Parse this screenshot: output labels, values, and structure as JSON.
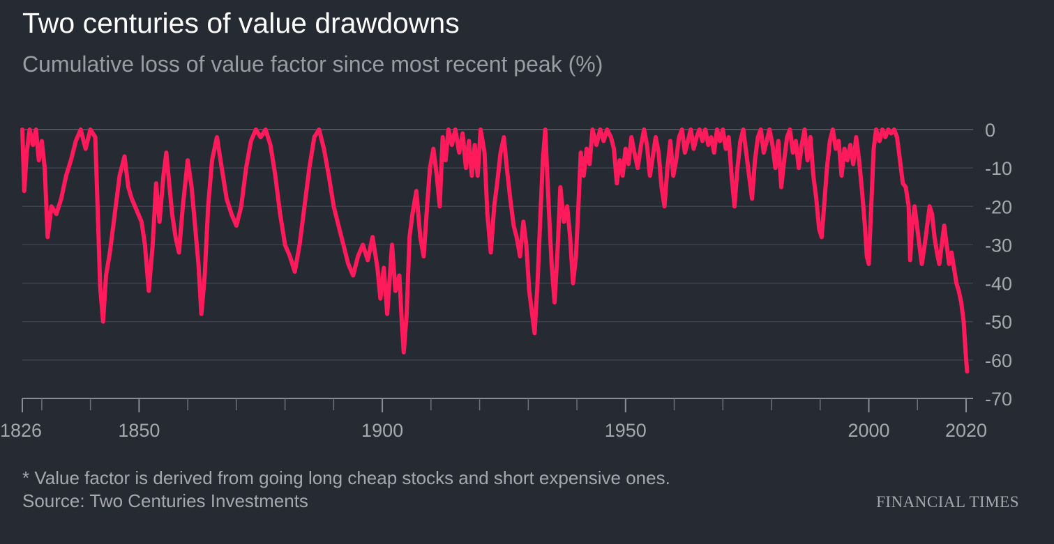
{
  "title": "Two centuries of value drawdowns",
  "subtitle": "Cumulative loss of value factor since most recent peak (%)",
  "footnote": "* Value factor is derived from going long cheap stocks and short expensive ones.",
  "source": "Source: Two Centuries Investments",
  "publisher": "FINANCIAL TIMES",
  "chart_data": {
    "type": "line",
    "title": "Two centuries of value drawdowns",
    "ylabel": "",
    "xlabel": "",
    "xlim": [
      1826,
      2021
    ],
    "ylim": [
      -70,
      0
    ],
    "y_ticks": [
      0,
      -10,
      -20,
      -30,
      -40,
      -50,
      -60,
      -70
    ],
    "y_tick_labels": [
      "0",
      "-10",
      "-20",
      "-30",
      "-40",
      "-50",
      "-60",
      "-70"
    ],
    "x_tick_labels": [
      {
        "value": 1826,
        "label": "1826"
      },
      {
        "value": 1850,
        "label": "1850"
      },
      {
        "value": 1900,
        "label": "1900"
      },
      {
        "value": 1950,
        "label": "1950"
      },
      {
        "value": 2000,
        "label": "2000"
      },
      {
        "value": 2020,
        "label": "2020"
      }
    ],
    "minor_x_ticks": [
      1830,
      1840,
      1860,
      1870,
      1880,
      1890,
      1910,
      1920,
      1930,
      1940,
      1960,
      1970,
      1980,
      1990,
      2010
    ],
    "grid": "horizontal",
    "line_color": "#ff1a5b",
    "series": [
      {
        "values": [
          [
            1826.0,
            0
          ],
          [
            1826.4,
            -16
          ],
          [
            1826.9,
            -6
          ],
          [
            1827.5,
            0
          ],
          [
            1828.2,
            -4
          ],
          [
            1828.8,
            0
          ],
          [
            1829.4,
            -8
          ],
          [
            1830.0,
            -3
          ],
          [
            1830.6,
            -10
          ],
          [
            1831.2,
            -28
          ],
          [
            1832.0,
            -20
          ],
          [
            1833.0,
            -22
          ],
          [
            1834.0,
            -18
          ],
          [
            1835.0,
            -12
          ],
          [
            1836.0,
            -8
          ],
          [
            1837.0,
            -3
          ],
          [
            1838.0,
            0
          ],
          [
            1839.0,
            -5
          ],
          [
            1840.0,
            0
          ],
          [
            1841.0,
            -2
          ],
          [
            1841.6,
            -25
          ],
          [
            1842.0,
            -41
          ],
          [
            1842.6,
            -50
          ],
          [
            1843.2,
            -38
          ],
          [
            1844.0,
            -32
          ],
          [
            1845.0,
            -22
          ],
          [
            1846.0,
            -12
          ],
          [
            1847.0,
            -7
          ],
          [
            1847.8,
            -15
          ],
          [
            1848.5,
            -18
          ],
          [
            1849.5,
            -21
          ],
          [
            1850.5,
            -24
          ],
          [
            1851.2,
            -30
          ],
          [
            1852.0,
            -42
          ],
          [
            1852.8,
            -30
          ],
          [
            1853.5,
            -14
          ],
          [
            1854.2,
            -24
          ],
          [
            1855.0,
            -12
          ],
          [
            1855.6,
            -6
          ],
          [
            1856.2,
            -14
          ],
          [
            1856.8,
            -22
          ],
          [
            1857.5,
            -28
          ],
          [
            1858.2,
            -32
          ],
          [
            1859.0,
            -20
          ],
          [
            1860.0,
            -8
          ],
          [
            1860.8,
            -15
          ],
          [
            1861.5,
            -25
          ],
          [
            1862.2,
            -35
          ],
          [
            1862.8,
            -48
          ],
          [
            1863.5,
            -38
          ],
          [
            1864.2,
            -20
          ],
          [
            1865.0,
            -8
          ],
          [
            1866.0,
            -2
          ],
          [
            1867.0,
            -10
          ],
          [
            1868.0,
            -18
          ],
          [
            1869.0,
            -22
          ],
          [
            1870.0,
            -25
          ],
          [
            1871.0,
            -20
          ],
          [
            1872.0,
            -10
          ],
          [
            1873.0,
            -3
          ],
          [
            1874.0,
            0
          ],
          [
            1875.0,
            -2
          ],
          [
            1876.0,
            0
          ],
          [
            1877.0,
            -4
          ],
          [
            1878.0,
            -12
          ],
          [
            1879.0,
            -22
          ],
          [
            1880.0,
            -30
          ],
          [
            1881.0,
            -33
          ],
          [
            1882.0,
            -37
          ],
          [
            1883.0,
            -30
          ],
          [
            1884.0,
            -20
          ],
          [
            1885.0,
            -10
          ],
          [
            1886.0,
            -2
          ],
          [
            1887.0,
            0
          ],
          [
            1888.0,
            -5
          ],
          [
            1889.0,
            -12
          ],
          [
            1890.0,
            -20
          ],
          [
            1891.0,
            -25
          ],
          [
            1892.0,
            -30
          ],
          [
            1893.0,
            -35
          ],
          [
            1894.0,
            -38
          ],
          [
            1895.0,
            -33
          ],
          [
            1896.0,
            -30
          ],
          [
            1897.0,
            -34
          ],
          [
            1898.0,
            -28
          ],
          [
            1899.0,
            -36
          ],
          [
            1899.6,
            -44
          ],
          [
            1900.3,
            -36
          ],
          [
            1901.0,
            -48
          ],
          [
            1902.0,
            -30
          ],
          [
            1902.7,
            -42
          ],
          [
            1903.5,
            -38
          ],
          [
            1904.0,
            -50
          ],
          [
            1904.4,
            -58
          ],
          [
            1905.0,
            -48
          ],
          [
            1905.6,
            -28
          ],
          [
            1906.2,
            -22
          ],
          [
            1907.0,
            -16
          ],
          [
            1907.8,
            -28
          ],
          [
            1908.5,
            -33
          ],
          [
            1909.2,
            -20
          ],
          [
            1909.8,
            -10
          ],
          [
            1910.5,
            -5
          ],
          [
            1911.2,
            -12
          ],
          [
            1911.8,
            -20
          ],
          [
            1912.4,
            -2
          ],
          [
            1913.0,
            -8
          ],
          [
            1913.6,
            0
          ],
          [
            1914.3,
            -4
          ],
          [
            1915.0,
            0
          ],
          [
            1915.8,
            -6
          ],
          [
            1916.5,
            -1
          ],
          [
            1917.2,
            -10
          ],
          [
            1917.8,
            -3
          ],
          [
            1918.4,
            -12
          ],
          [
            1919.0,
            -4
          ],
          [
            1919.6,
            -12
          ],
          [
            1920.2,
            0
          ],
          [
            1921.0,
            -6
          ],
          [
            1921.6,
            -22
          ],
          [
            1922.3,
            -32
          ],
          [
            1923.0,
            -20
          ],
          [
            1923.6,
            -14
          ],
          [
            1924.3,
            -6
          ],
          [
            1925.0,
            -2
          ],
          [
            1925.6,
            -10
          ],
          [
            1926.3,
            -18
          ],
          [
            1927.0,
            -25
          ],
          [
            1927.6,
            -28
          ],
          [
            1928.3,
            -33
          ],
          [
            1929.0,
            -24
          ],
          [
            1929.6,
            -30
          ],
          [
            1930.2,
            -42
          ],
          [
            1930.8,
            -48
          ],
          [
            1931.3,
            -53
          ],
          [
            1931.9,
            -40
          ],
          [
            1932.5,
            -22
          ],
          [
            1933.0,
            -8
          ],
          [
            1933.5,
            0
          ],
          [
            1934.2,
            -20
          ],
          [
            1934.8,
            -35
          ],
          [
            1935.4,
            -45
          ],
          [
            1936.0,
            -32
          ],
          [
            1936.6,
            -15
          ],
          [
            1937.3,
            -24
          ],
          [
            1938.0,
            -20
          ],
          [
            1938.6,
            -28
          ],
          [
            1939.2,
            -40
          ],
          [
            1939.8,
            -33
          ],
          [
            1940.3,
            -20
          ],
          [
            1940.8,
            -6
          ],
          [
            1941.4,
            -12
          ],
          [
            1942.0,
            -5
          ],
          [
            1942.6,
            -9
          ],
          [
            1943.2,
            0
          ],
          [
            1944.0,
            -4
          ],
          [
            1944.8,
            0
          ],
          [
            1945.5,
            -3
          ],
          [
            1946.2,
            0
          ],
          [
            1947.0,
            -2
          ],
          [
            1947.6,
            -5
          ],
          [
            1948.2,
            -14
          ],
          [
            1948.8,
            -8
          ],
          [
            1949.4,
            -12
          ],
          [
            1950.0,
            -5
          ],
          [
            1950.6,
            -9
          ],
          [
            1951.2,
            -2
          ],
          [
            1951.8,
            -6
          ],
          [
            1952.5,
            -10
          ],
          [
            1953.2,
            -4
          ],
          [
            1953.8,
            0
          ],
          [
            1954.4,
            -4
          ],
          [
            1955.0,
            -12
          ],
          [
            1955.6,
            -7
          ],
          [
            1956.2,
            -2
          ],
          [
            1956.8,
            -6
          ],
          [
            1957.4,
            -15
          ],
          [
            1958.0,
            -20
          ],
          [
            1958.6,
            -10
          ],
          [
            1959.2,
            -3
          ],
          [
            1959.8,
            -12
          ],
          [
            1960.4,
            -8
          ],
          [
            1961.0,
            -2
          ],
          [
            1961.6,
            0
          ],
          [
            1962.2,
            -6
          ],
          [
            1962.8,
            -3
          ],
          [
            1963.4,
            0
          ],
          [
            1964.0,
            -5
          ],
          [
            1964.6,
            -2
          ],
          [
            1965.2,
            0
          ],
          [
            1965.8,
            -3
          ],
          [
            1966.4,
            0
          ],
          [
            1967.0,
            -4
          ],
          [
            1967.6,
            -2
          ],
          [
            1968.2,
            -6
          ],
          [
            1968.8,
            0
          ],
          [
            1969.4,
            -3
          ],
          [
            1970.0,
            0
          ],
          [
            1970.6,
            -5
          ],
          [
            1971.2,
            -2
          ],
          [
            1971.8,
            -12
          ],
          [
            1972.4,
            -20
          ],
          [
            1973.0,
            -10
          ],
          [
            1973.6,
            -3
          ],
          [
            1974.2,
            0
          ],
          [
            1974.8,
            -6
          ],
          [
            1975.4,
            -12
          ],
          [
            1976.0,
            -18
          ],
          [
            1976.6,
            -8
          ],
          [
            1977.2,
            -2
          ],
          [
            1977.8,
            0
          ],
          [
            1978.4,
            -6
          ],
          [
            1979.0,
            -3
          ],
          [
            1979.6,
            0
          ],
          [
            1980.2,
            -4
          ],
          [
            1980.8,
            -10
          ],
          [
            1981.4,
            -3
          ],
          [
            1982.0,
            -15
          ],
          [
            1982.6,
            -8
          ],
          [
            1983.2,
            -2
          ],
          [
            1983.8,
            0
          ],
          [
            1984.4,
            -6
          ],
          [
            1985.0,
            -3
          ],
          [
            1985.6,
            -10
          ],
          [
            1986.2,
            -4
          ],
          [
            1986.8,
            0
          ],
          [
            1987.4,
            -8
          ],
          [
            1988.0,
            -2
          ],
          [
            1988.6,
            -12
          ],
          [
            1989.2,
            -18
          ],
          [
            1989.8,
            -26
          ],
          [
            1990.3,
            -28
          ],
          [
            1990.8,
            -20
          ],
          [
            1991.4,
            -10
          ],
          [
            1992.0,
            -3
          ],
          [
            1992.6,
            0
          ],
          [
            1993.2,
            -5
          ],
          [
            1993.8,
            -3
          ],
          [
            1994.4,
            -12
          ],
          [
            1995.0,
            -5
          ],
          [
            1995.6,
            -8
          ],
          [
            1996.2,
            -4
          ],
          [
            1996.8,
            -9
          ],
          [
            1997.4,
            -2
          ],
          [
            1998.0,
            -8
          ],
          [
            1998.6,
            -16
          ],
          [
            1999.2,
            -25
          ],
          [
            1999.6,
            -33
          ],
          [
            2000.0,
            -35
          ],
          [
            2000.5,
            -20
          ],
          [
            2001.0,
            -5
          ],
          [
            2001.5,
            0
          ],
          [
            2002.2,
            -3
          ],
          [
            2002.8,
            0
          ],
          [
            2003.4,
            -2
          ],
          [
            2004.0,
            0
          ],
          [
            2004.6,
            -1
          ],
          [
            2005.2,
            0
          ],
          [
            2005.8,
            -2
          ],
          [
            2006.4,
            -8
          ],
          [
            2007.0,
            -14
          ],
          [
            2007.6,
            -15
          ],
          [
            2008.2,
            -20
          ],
          [
            2008.5,
            -34
          ],
          [
            2008.9,
            -25
          ],
          [
            2009.4,
            -20
          ],
          [
            2009.9,
            -25
          ],
          [
            2010.4,
            -30
          ],
          [
            2010.9,
            -35
          ],
          [
            2011.5,
            -30
          ],
          [
            2012.0,
            -25
          ],
          [
            2012.5,
            -20
          ],
          [
            2013.0,
            -22
          ],
          [
            2013.5,
            -28
          ],
          [
            2014.0,
            -32
          ],
          [
            2014.5,
            -35
          ],
          [
            2015.0,
            -30
          ],
          [
            2015.5,
            -25
          ],
          [
            2016.0,
            -30
          ],
          [
            2016.5,
            -35
          ],
          [
            2017.0,
            -32
          ],
          [
            2017.5,
            -36
          ],
          [
            2018.0,
            -40
          ],
          [
            2018.5,
            -42
          ],
          [
            2019.0,
            -45
          ],
          [
            2019.5,
            -50
          ],
          [
            2019.9,
            -58
          ],
          [
            2020.2,
            -63
          ]
        ]
      }
    ]
  }
}
